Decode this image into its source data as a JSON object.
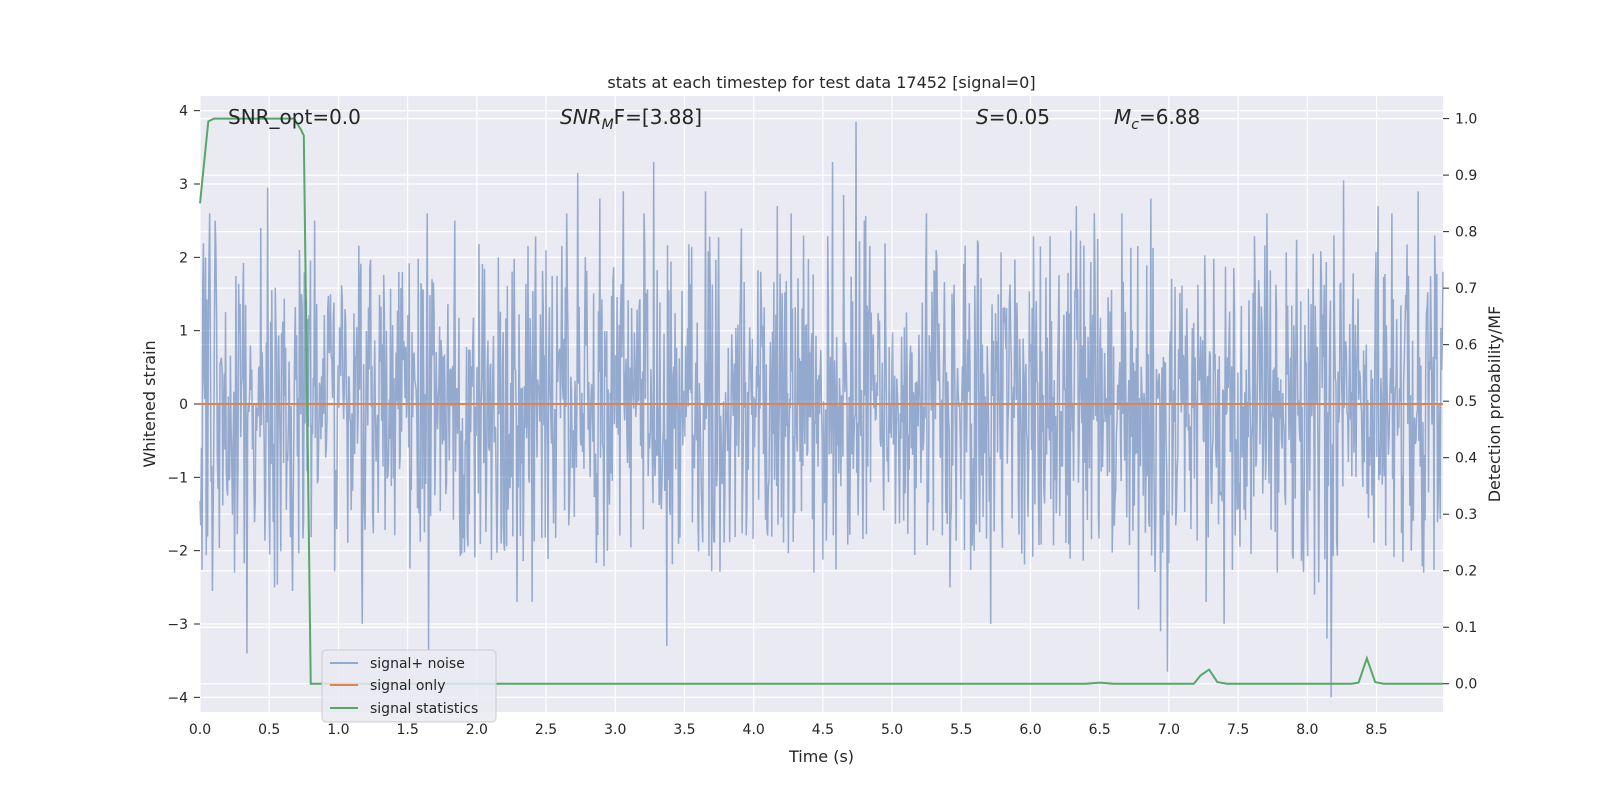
{
  "chart_data": {
    "type": "line",
    "title": "stats at each timestep for test data 17452 [signal=0]",
    "xlabel": "Time (s)",
    "ylabel": "Whitened strain",
    "y2label": "Detection probability/MF",
    "xlim": [
      0.0,
      8.98
    ],
    "ylim": [
      -4.2,
      4.2
    ],
    "y2lim": [
      -0.05,
      1.04
    ],
    "x_ticks": [
      "0.0",
      "0.5",
      "1.0",
      "1.5",
      "2.0",
      "2.5",
      "3.0",
      "3.5",
      "4.0",
      "4.5",
      "5.0",
      "5.5",
      "6.0",
      "6.5",
      "7.0",
      "7.5",
      "8.0",
      "8.5"
    ],
    "y_ticks": [
      "−4",
      "−3",
      "−2",
      "−1",
      "0",
      "1",
      "2",
      "3",
      "4"
    ],
    "y2_ticks": [
      "0.0",
      "0.1",
      "0.2",
      "0.3",
      "0.4",
      "0.5",
      "0.6",
      "0.7",
      "0.8",
      "0.9",
      "1.0"
    ],
    "grid": true,
    "legend_position": "lower-left",
    "annotations": {
      "snr_opt": "SNR_opt=0.0",
      "snr_mf_name": "SNR",
      "snr_mf_sub": "M",
      "snr_mf_rest": "F=[3.88]",
      "s_name": "S",
      "s_value": "=0.05",
      "mc_name": "M",
      "mc_sub": "c",
      "mc_value": "=6.88"
    },
    "series": [
      {
        "name": "signal+ noise",
        "color": "#4c72b0",
        "style": "noise",
        "peaks": [
          [
            0.07,
            2.6
          ],
          [
            0.09,
            -2.55
          ],
          [
            0.11,
            2.5
          ],
          [
            0.25,
            -2.3
          ],
          [
            0.34,
            -3.4
          ],
          [
            0.44,
            2.4
          ],
          [
            0.49,
            2.95
          ],
          [
            0.54,
            -2.5
          ],
          [
            0.67,
            -2.55
          ],
          [
            0.72,
            2.1
          ],
          [
            0.83,
            2.5
          ],
          [
            1.17,
            -3.0
          ],
          [
            1.64,
            2.6
          ],
          [
            1.65,
            -3.35
          ],
          [
            1.84,
            2.5
          ],
          [
            2.29,
            -2.7
          ],
          [
            2.4,
            -2.7
          ],
          [
            2.65,
            2.6
          ],
          [
            2.73,
            3.15
          ],
          [
            2.89,
            2.8
          ],
          [
            3.06,
            2.9
          ],
          [
            3.21,
            2.6
          ],
          [
            3.28,
            3.3
          ],
          [
            3.37,
            -3.3
          ],
          [
            3.65,
            2.9
          ],
          [
            4.17,
            2.7
          ],
          [
            4.27,
            2.6
          ],
          [
            4.57,
            3.3
          ],
          [
            4.65,
            2.85
          ],
          [
            4.74,
            3.85
          ],
          [
            4.8,
            2.5
          ],
          [
            5.25,
            2.6
          ],
          [
            5.42,
            -2.5
          ],
          [
            5.71,
            -3.0
          ],
          [
            6.33,
            2.7
          ],
          [
            6.46,
            2.6
          ],
          [
            6.66,
            2.6
          ],
          [
            6.78,
            -2.8
          ],
          [
            6.87,
            2.8
          ],
          [
            6.94,
            -3.1
          ],
          [
            6.99,
            -3.65
          ],
          [
            7.27,
            -2.7
          ],
          [
            7.4,
            -3.0
          ],
          [
            7.71,
            2.6
          ],
          [
            8.05,
            -2.6
          ],
          [
            8.14,
            -3.2
          ],
          [
            8.17,
            -4.0
          ],
          [
            8.19,
            2.3
          ],
          [
            8.26,
            3.05
          ],
          [
            8.51,
            2.7
          ],
          [
            8.61,
            2.6
          ],
          [
            8.8,
            2.9
          ],
          [
            8.84,
            -2.3
          ],
          [
            8.92,
            2.3
          ]
        ]
      },
      {
        "name": "signal only",
        "color": "#dd8452",
        "x": [
          0.0,
          8.98
        ],
        "y": [
          0.0,
          0.0
        ]
      },
      {
        "name": "signal statistics",
        "color": "#55a868",
        "axis": "right",
        "x": [
          0.0,
          0.06,
          0.1,
          0.2,
          0.3,
          0.4,
          0.5,
          0.6,
          0.68,
          0.73,
          0.75,
          0.8,
          0.9,
          1.5,
          2.5,
          3.5,
          4.5,
          5.5,
          6.4,
          6.5,
          6.6,
          7.1,
          7.18,
          7.23,
          7.29,
          7.35,
          7.42,
          7.6,
          8.0,
          8.32,
          8.37,
          8.43,
          8.49,
          8.55,
          8.7,
          8.98
        ],
        "y": [
          0.85,
          0.995,
          1.0,
          1.0,
          1.0,
          1.0,
          1.0,
          1.0,
          1.0,
          0.98,
          0.97,
          0.0,
          0.0,
          0.0,
          0.0,
          0.0,
          0.0,
          0.0,
          0.0,
          0.002,
          0.0,
          0.0,
          0.0,
          0.015,
          0.025,
          0.003,
          0.0,
          0.0,
          0.0,
          0.0,
          0.002,
          0.045,
          0.003,
          0.0,
          0.0,
          0.0
        ]
      }
    ]
  }
}
